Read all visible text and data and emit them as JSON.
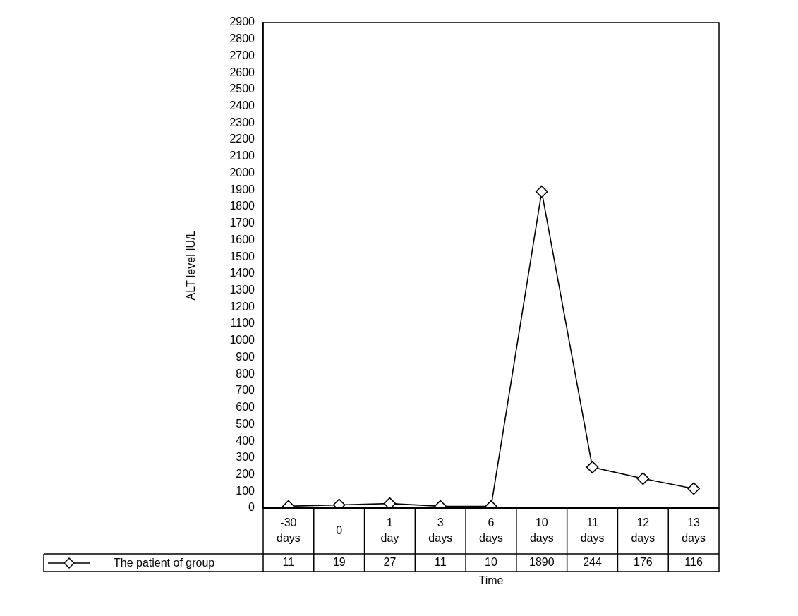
{
  "chart_data": {
    "type": "line",
    "xlabel": "Time",
    "ylabel": "ALT level IU/L",
    "categories": [
      "-30\ndays",
      "0",
      "1\nday",
      "3\ndays",
      "6\ndays",
      "10\ndays",
      "11\ndays",
      "12\ndays",
      "13\ndays"
    ],
    "series": [
      {
        "name": "The patient of group",
        "color": "#000000",
        "values": [
          11,
          19,
          27,
          11,
          10,
          1890,
          244,
          176,
          116
        ]
      }
    ],
    "ylim": [
      0,
      2900
    ],
    "yticks": [
      0,
      100,
      200,
      300,
      400,
      500,
      600,
      700,
      800,
      900,
      1000,
      1100,
      1200,
      1300,
      1400,
      1500,
      1600,
      1700,
      1800,
      1900,
      2000,
      2100,
      2200,
      2300,
      2400,
      2500,
      2600,
      2700,
      2800,
      2900
    ],
    "grid": false,
    "legend": "bottom left",
    "marker": "diamond",
    "line_style": "solid",
    "data_labels": true
  }
}
